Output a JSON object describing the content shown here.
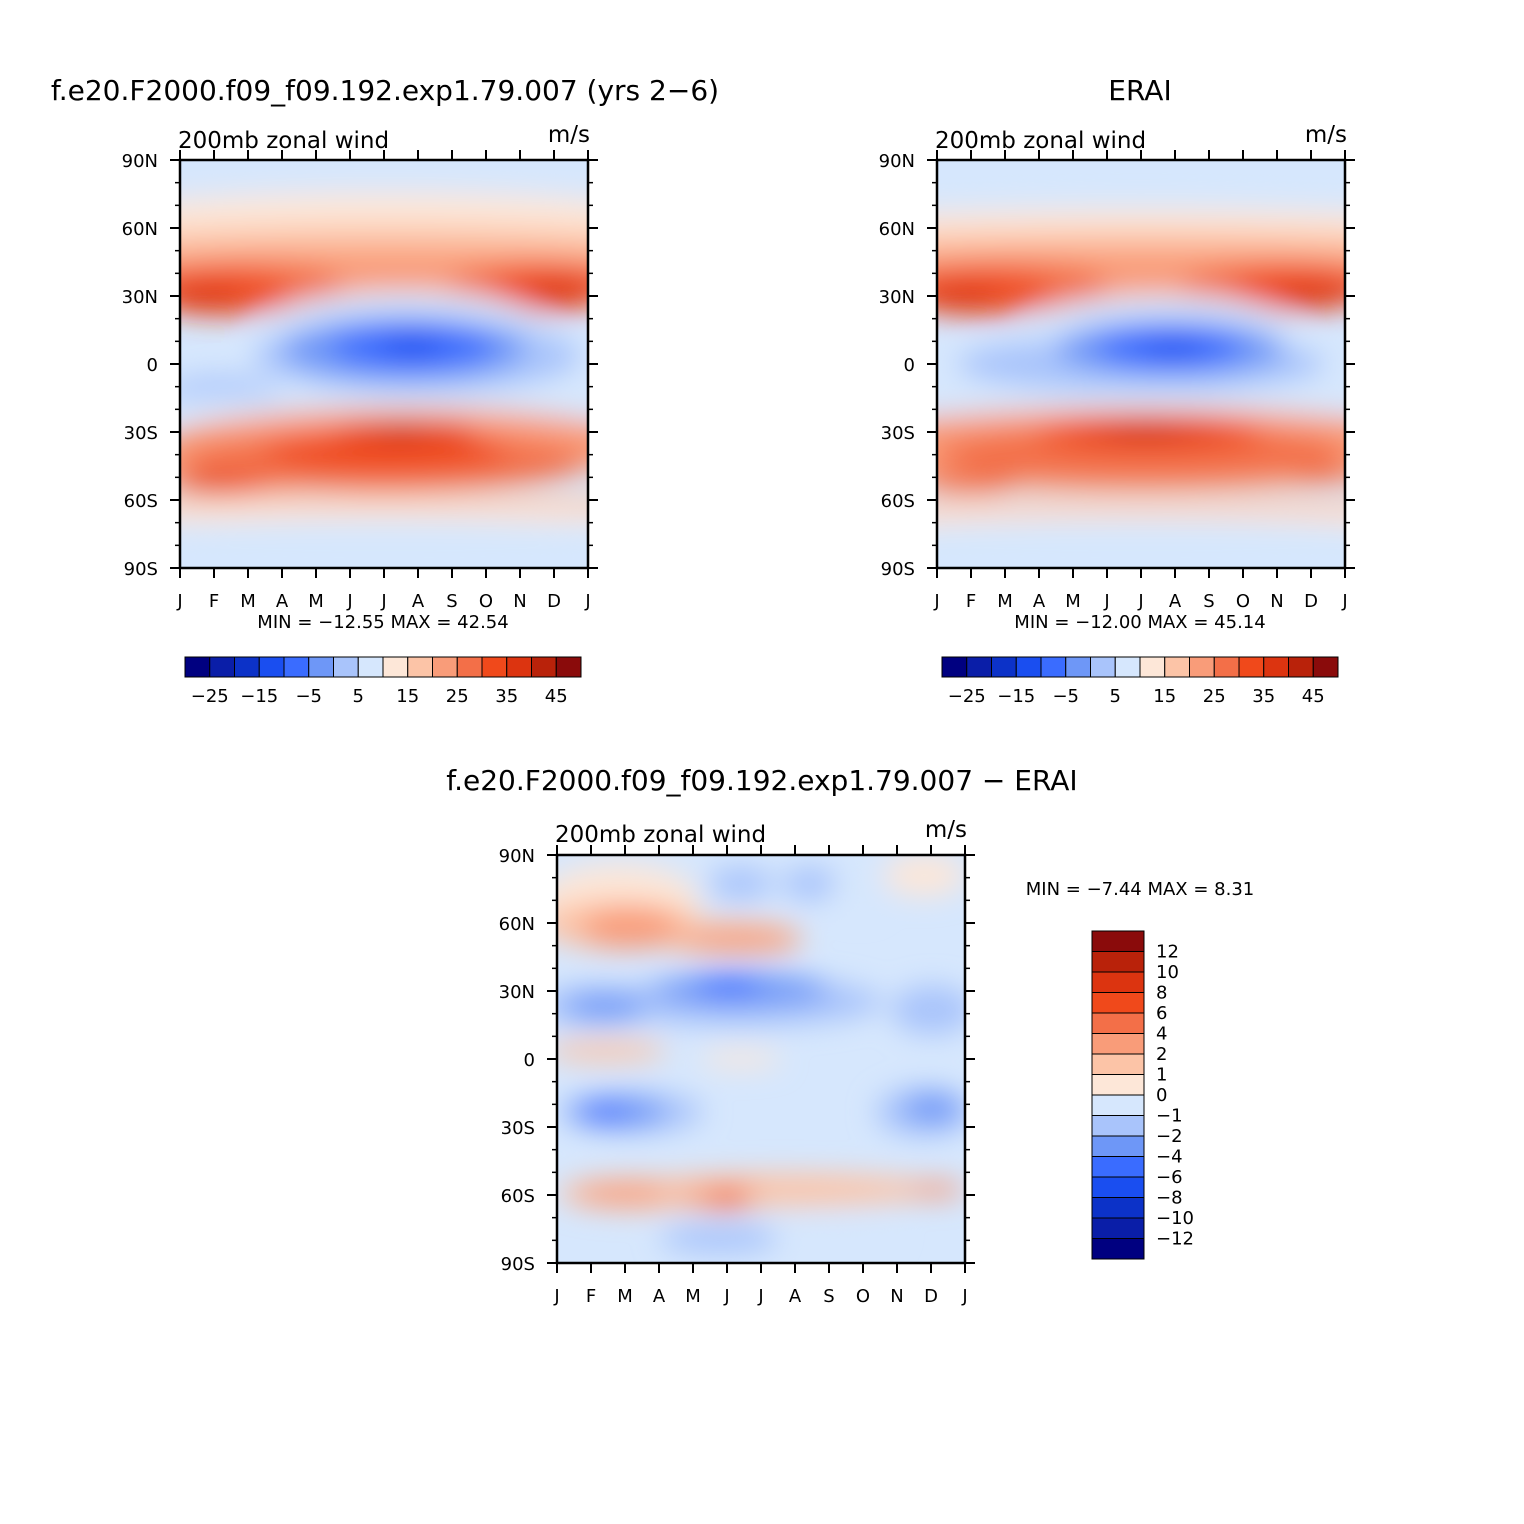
{
  "panels": [
    {
      "id": "model",
      "title": "f.e20.F2000.f09_f09.192.exp1.79.007 (yrs 2−6)",
      "left_label": "200mb zonal wind",
      "right_label": "m/s",
      "stats": "MIN = −12.55 MAX = 42.54",
      "min": -12.55,
      "max": 42.54,
      "colorbar_tick_labels": [
        "−25",
        "−15",
        "−5",
        "5",
        "15",
        "25",
        "35",
        "45"
      ]
    },
    {
      "id": "erai",
      "title": "ERAI",
      "left_label": "200mb zonal wind",
      "right_label": "m/s",
      "stats": "MIN = −12.00 MAX = 45.14",
      "min": -12.0,
      "max": 45.14,
      "colorbar_tick_labels": [
        "−25",
        "−15",
        "−5",
        "5",
        "15",
        "25",
        "35",
        "45"
      ]
    },
    {
      "id": "diff",
      "title": "f.e20.F2000.f09_f09.192.exp1.79.007 − ERAI",
      "left_label": "200mb zonal wind",
      "right_label": "m/s",
      "stats": "MIN = −7.44 MAX = 8.31",
      "min": -7.44,
      "max": 8.31,
      "colorbar_tick_labels": [
        "12",
        "10",
        "8",
        "6",
        "4",
        "2",
        "1",
        "0",
        "−1",
        "−2",
        "−4",
        "−6",
        "−8",
        "−10",
        "−12"
      ]
    }
  ],
  "chart_data": [
    {
      "type": "heatmap",
      "title": "f.e20.F2000.f09_f09.192.exp1.79.007 (yrs 2−6)",
      "subtitle": "200mb zonal wind",
      "units": "m/s",
      "x": [
        "J",
        "F",
        "M",
        "A",
        "M",
        "J",
        "J",
        "A",
        "S",
        "O",
        "N",
        "D",
        "J"
      ],
      "y": [
        "90N",
        "60N",
        "30N",
        "0",
        "30S",
        "60S",
        "90S"
      ],
      "levels": [
        -30,
        -25,
        -20,
        -15,
        -10,
        -5,
        0,
        5,
        10,
        15,
        20,
        25,
        30,
        35,
        40,
        45
      ],
      "colors": [
        "#000080",
        "#0a1ea8",
        "#0c32c8",
        "#1a4ef0",
        "#3a6cff",
        "#6e97f7",
        "#a9c4fb",
        "#d6e7fd",
        "#fde7d8",
        "#fcc4a7",
        "#f99c79",
        "#f36f48",
        "#f0491b",
        "#dc3410",
        "#b9220a",
        "#8a0b0b"
      ],
      "min": -12.55,
      "max": 42.54
    },
    {
      "type": "heatmap",
      "title": "ERAI",
      "subtitle": "200mb zonal wind",
      "units": "m/s",
      "x": [
        "J",
        "F",
        "M",
        "A",
        "M",
        "J",
        "J",
        "A",
        "S",
        "O",
        "N",
        "D",
        "J"
      ],
      "y": [
        "90N",
        "60N",
        "30N",
        "0",
        "30S",
        "60S",
        "90S"
      ],
      "levels": [
        -30,
        -25,
        -20,
        -15,
        -10,
        -5,
        0,
        5,
        10,
        15,
        20,
        25,
        30,
        35,
        40,
        45
      ],
      "colors": [
        "#000080",
        "#0a1ea8",
        "#0c32c8",
        "#1a4ef0",
        "#3a6cff",
        "#6e97f7",
        "#a9c4fb",
        "#d6e7fd",
        "#fde7d8",
        "#fcc4a7",
        "#f99c79",
        "#f36f48",
        "#f0491b",
        "#dc3410",
        "#b9220a",
        "#8a0b0b"
      ],
      "min": -12.0,
      "max": 45.14
    },
    {
      "type": "heatmap",
      "title": "f.e20.F2000.f09_f09.192.exp1.79.007 − ERAI",
      "subtitle": "200mb zonal wind",
      "units": "m/s",
      "x": [
        "J",
        "F",
        "M",
        "A",
        "M",
        "J",
        "J",
        "A",
        "S",
        "O",
        "N",
        "D",
        "J"
      ],
      "y": [
        "90N",
        "60N",
        "30N",
        "0",
        "30S",
        "60S",
        "90S"
      ],
      "levels": [
        -12,
        -10,
        -8,
        -6,
        -4,
        -2,
        -1,
        0,
        1,
        2,
        4,
        6,
        8,
        10,
        12
      ],
      "colors": [
        "#000080",
        "#0a1ea8",
        "#0c32c8",
        "#1a4ef0",
        "#3a6cff",
        "#6e97f7",
        "#a9c4fb",
        "#d6e7fd",
        "#fde7d8",
        "#fcc4a7",
        "#f99c79",
        "#f36f48",
        "#f0491b",
        "#dc3410",
        "#b9220a",
        "#8a0b0b"
      ],
      "min": -7.44,
      "max": 8.31
    }
  ]
}
